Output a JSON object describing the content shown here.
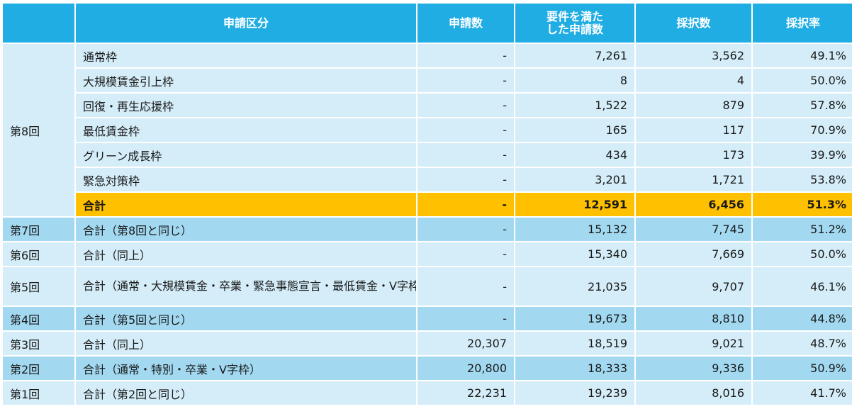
{
  "headers": {
    "round": "",
    "category": "申請区分",
    "applications": "申請数",
    "qualified_line1": "要件を満た",
    "qualified_line2": "した申請数",
    "adopted": "採択数",
    "rate": "採択率"
  },
  "round8": {
    "label": "第8回",
    "rows": [
      {
        "category": "通常枠",
        "applications": "-",
        "qualified": "7,261",
        "adopted": "3,562",
        "rate": "49.1%"
      },
      {
        "category": "大規模賃金引上枠",
        "applications": "-",
        "qualified": "8",
        "adopted": "4",
        "rate": "50.0%"
      },
      {
        "category": "回復・再生応援枠",
        "applications": "-",
        "qualified": "1,522",
        "adopted": "879",
        "rate": "57.8%"
      },
      {
        "category": "最低賃金枠",
        "applications": "-",
        "qualified": "165",
        "adopted": "117",
        "rate": "70.9%"
      },
      {
        "category": "グリーン成長枠",
        "applications": "-",
        "qualified": "434",
        "adopted": "173",
        "rate": "39.9%"
      },
      {
        "category": "緊急対策枠",
        "applications": "-",
        "qualified": "3,201",
        "adopted": "1,721",
        "rate": "53.8%"
      }
    ],
    "total": {
      "category": "合計",
      "applications": "-",
      "qualified": "12,591",
      "adopted": "6,456",
      "rate": "51.3%"
    }
  },
  "rounds": [
    {
      "label": "第7回",
      "category": "合計（第8回と同じ）",
      "applications": "-",
      "qualified": "15,132",
      "adopted": "7,745",
      "rate": "51.2%"
    },
    {
      "label": "第6回",
      "category": "合計（同上）",
      "applications": "-",
      "qualified": "15,340",
      "adopted": "7,669",
      "rate": "50.0%"
    },
    {
      "label": "第5回",
      "category": "合計（通常・大規模賃金・卒業・緊急事態宣言・最低賃金・V字枠）",
      "applications": "-",
      "qualified": "21,035",
      "adopted": "9,707",
      "rate": "46.1%"
    },
    {
      "label": "第4回",
      "category": "合計（第5回と同じ）",
      "applications": "-",
      "qualified": "19,673",
      "adopted": "8,810",
      "rate": "44.8%"
    },
    {
      "label": "第3回",
      "category": "合計（同上）",
      "applications": "20,307",
      "qualified": "18,519",
      "adopted": "9,021",
      "rate": "48.7%"
    },
    {
      "label": "第2回",
      "category": "合計（通常・特別・卒業・V字枠）",
      "applications": "20,800",
      "qualified": "18,333",
      "adopted": "9,336",
      "rate": "50.9%"
    },
    {
      "label": "第1回",
      "category": "合計（第2回と同じ）",
      "applications": "22,231",
      "qualified": "19,239",
      "adopted": "8,016",
      "rate": "41.7%"
    }
  ],
  "colors": {
    "header": "#20ade3",
    "row_light": "#d4edf8",
    "row_mid": "#a2d9f1",
    "total_highlight": "#ffc000"
  }
}
